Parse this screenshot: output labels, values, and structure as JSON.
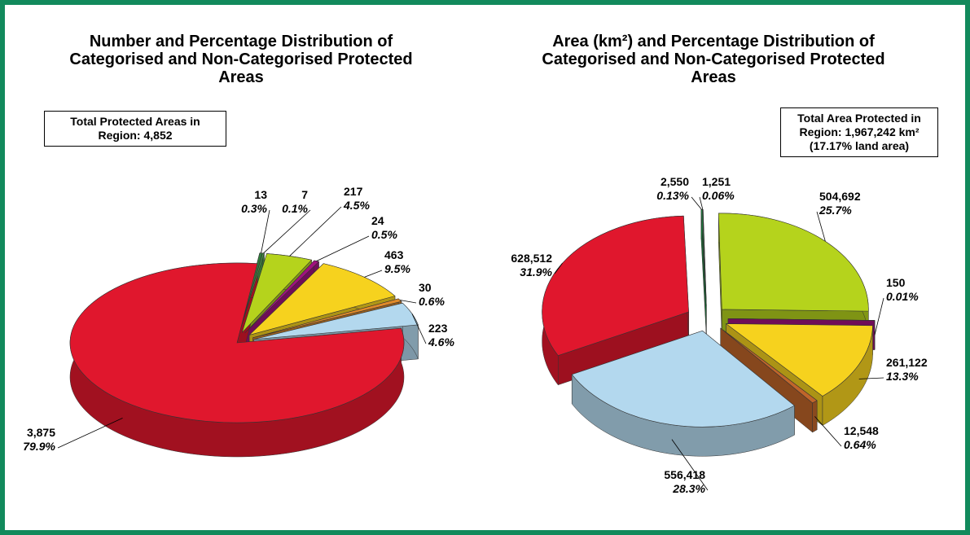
{
  "chart_data": [
    {
      "type": "pie3d",
      "title": "Number and Percentage Distribution of Categorised and Non-Categorised Protected Areas",
      "annotation": "Total Protected Areas in Region: 4,852",
      "values": [
        13,
        7,
        217,
        24,
        463,
        30,
        223,
        3875
      ],
      "value_labels": [
        "13",
        "7",
        "217",
        "24",
        "463",
        "30",
        "223",
        "3,875"
      ],
      "percents": [
        0.3,
        0.1,
        4.5,
        0.5,
        9.5,
        0.6,
        4.6,
        79.9
      ],
      "percent_labels": [
        "0.3%",
        "0.1%",
        "4.5%",
        "0.5%",
        "9.5%",
        "0.6%",
        "4.6%",
        "79.9%"
      ],
      "colors": [
        "#2f7d3a",
        "#4aa64a",
        "#b5d31c",
        "#a0127e",
        "#f6d21e",
        "#e08a2a",
        "#b3d8ee",
        "#e0172d"
      ]
    },
    {
      "type": "pie3d",
      "title": "Area (km²) and Percentage Distribution of Categorised and Non-Categorised Protected Areas",
      "annotation": "Total Area Protected in Region: 1,967,242 km² (17.17% land area)",
      "values": [
        2550,
        1251,
        504692,
        150,
        261122,
        12548,
        556418,
        628512
      ],
      "value_labels": [
        "2,550",
        "1,251",
        "504,692",
        "150",
        "261,122",
        "12,548",
        "556,418",
        "628,512"
      ],
      "percents": [
        0.13,
        0.06,
        25.7,
        0.01,
        13.3,
        0.64,
        28.3,
        31.9
      ],
      "percent_labels": [
        "0.13%",
        "0.06%",
        "25.7%",
        "0.01%",
        "13.3%",
        "0.64%",
        "28.3%",
        "31.9%"
      ],
      "colors": [
        "#1aaa4a",
        "#2f7d3a",
        "#b5d31c",
        "#a0127e",
        "#f6d21e",
        "#c0652a",
        "#b3d8ee",
        "#e0172d"
      ]
    }
  ]
}
